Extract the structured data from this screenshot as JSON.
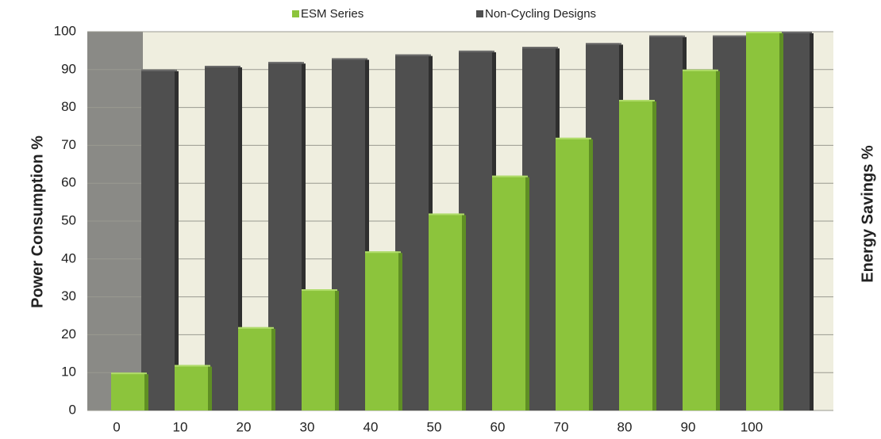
{
  "chart_data": {
    "type": "bar",
    "categories": [
      "0",
      "10",
      "20",
      "30",
      "40",
      "50",
      "60",
      "70",
      "80",
      "90",
      "100"
    ],
    "series": [
      {
        "name": "ESM Series",
        "color": "#8cc43c",
        "values": [
          10,
          12,
          22,
          32,
          42,
          52,
          62,
          72,
          82,
          90,
          100
        ]
      },
      {
        "name": "Non-Cycling Designs",
        "color": "#4f4f4f",
        "values": [
          90,
          91,
          92,
          93,
          94,
          95,
          96,
          97,
          99,
          99,
          100
        ]
      }
    ],
    "y_label": "Power Consumption %",
    "y2_label": "Energy Savings %",
    "ylim": [
      0,
      100
    ],
    "yticks": [
      0,
      10,
      20,
      30,
      40,
      50,
      60,
      70,
      80,
      90,
      100
    ],
    "grid": true
  }
}
